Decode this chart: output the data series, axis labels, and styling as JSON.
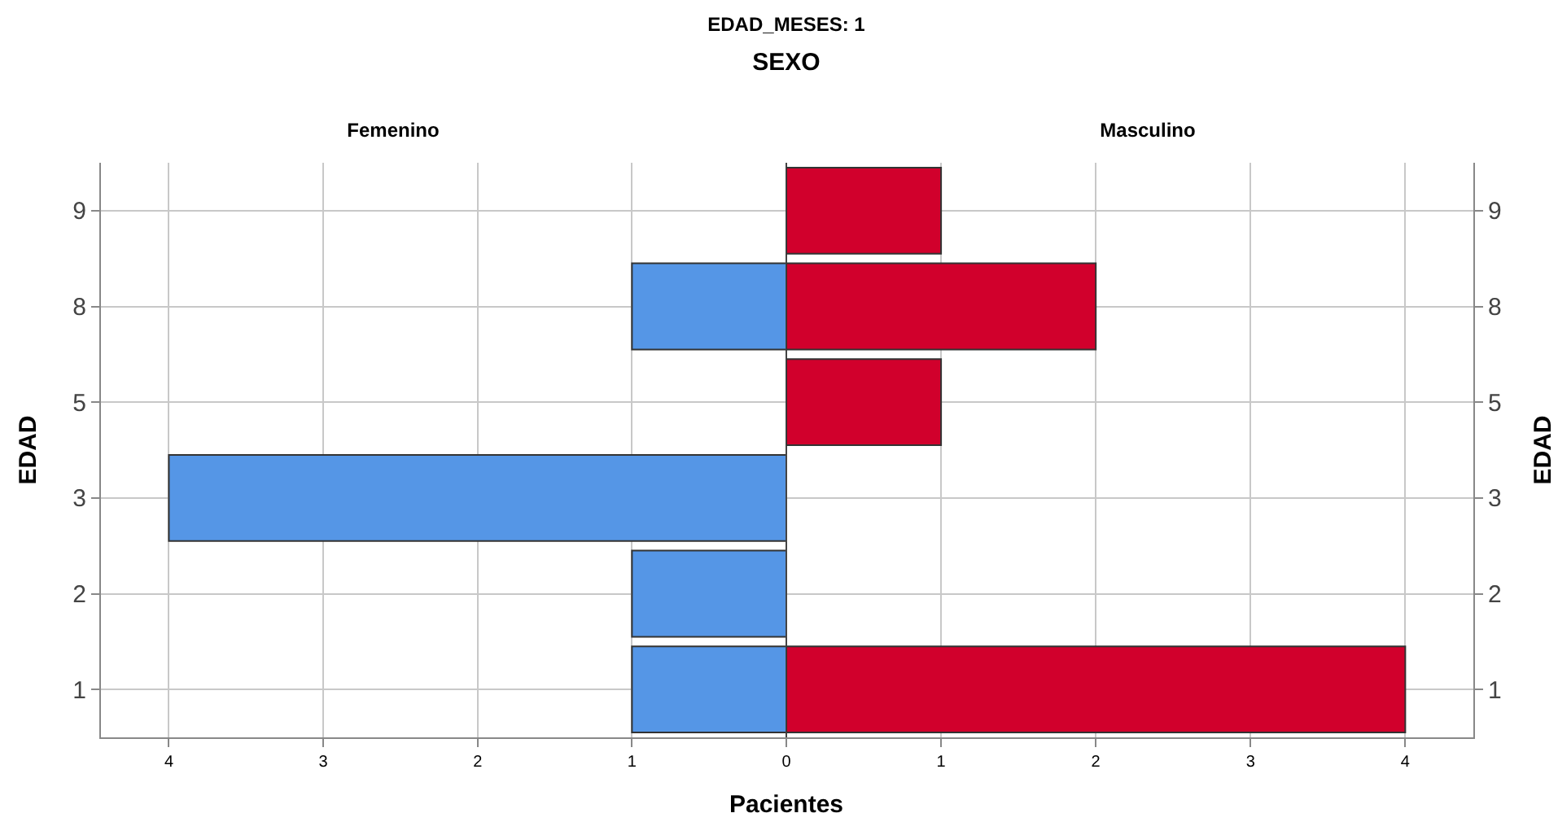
{
  "chart_data": [
    {
      "type": "bar",
      "title": "Femenino",
      "annotations": [
        "EDAD_MESES: 1",
        "SEXO"
      ],
      "xlabel": "Pacientes",
      "orientation": "horizontal",
      "ylabel": "EDAD",
      "categories": [
        "9",
        "8",
        "5",
        "3",
        "2",
        "1"
      ],
      "series": [
        {
          "color": "#5596e6",
          "values": [
            null,
            1,
            null,
            4,
            1,
            1
          ]
        }
      ],
      "xlim": [
        4.44,
        0
      ],
      "xticks": [
        4,
        3,
        2,
        1,
        {
          "value": 0,
          "label": null
        }
      ],
      "grid": true,
      "legend": false
    },
    {
      "type": "bar",
      "title": "Masculino",
      "orientation": "horizontal",
      "y2label": "EDAD",
      "categories": [
        "9",
        "8",
        "5",
        "3",
        "2",
        "1"
      ],
      "series": [
        {
          "color": "#d1002c",
          "values": [
            1,
            2,
            1,
            null,
            null,
            4
          ]
        }
      ],
      "xlim": [
        0,
        4.44
      ],
      "xticks": [
        0,
        1,
        2,
        3,
        4
      ],
      "grid": true,
      "legend": false
    }
  ]
}
